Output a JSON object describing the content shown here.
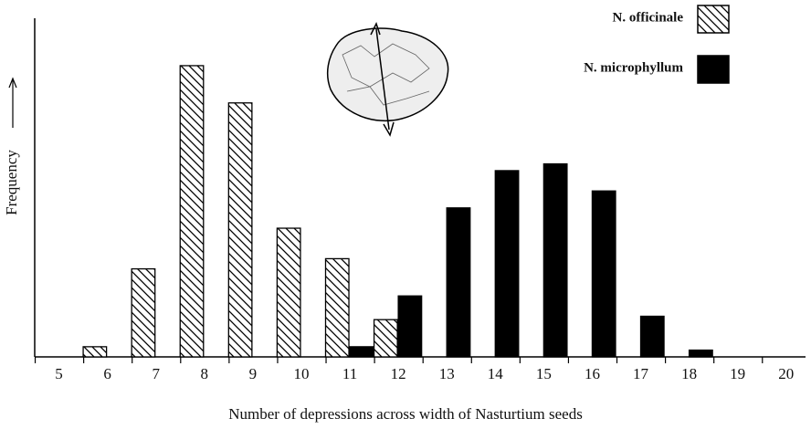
{
  "chart_data": {
    "type": "bar",
    "x_label": "Number of depressions across width of Nasturtium seeds",
    "y_label": "Frequency",
    "x": [
      5,
      6,
      7,
      8,
      9,
      10,
      11,
      12,
      13,
      14,
      15,
      16,
      17,
      18,
      19,
      20
    ],
    "xlim": [
      4.5,
      20.4
    ],
    "xticks": [
      5,
      6,
      7,
      8,
      9,
      10,
      11,
      12,
      13,
      14,
      15,
      16,
      17,
      18,
      19,
      20
    ],
    "ylim": [
      0,
      100
    ],
    "legend": "top-right",
    "series": [
      {
        "name": "N. officinale",
        "color": "hatched",
        "values": [
          null,
          3,
          26,
          86,
          75,
          38,
          29,
          11,
          null,
          null,
          null,
          null,
          null,
          null,
          null,
          null
        ]
      },
      {
        "name": "N. microphyllum",
        "color": "#000000",
        "values": [
          null,
          null,
          null,
          null,
          null,
          null,
          3,
          18,
          44,
          55,
          57,
          49,
          12,
          2,
          null,
          null
        ]
      }
    ]
  }
}
